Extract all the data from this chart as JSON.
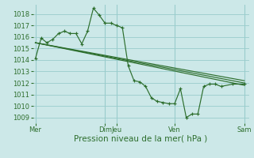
{
  "bg_color": "#cce8e8",
  "grid_color": "#99cccc",
  "line_color": "#2d6e2d",
  "xlabel": "Pression niveau de la mer( hPa )",
  "xlabel_fontsize": 7.5,
  "ylim": [
    1008.5,
    1018.8
  ],
  "yticks": [
    1009,
    1010,
    1011,
    1012,
    1013,
    1014,
    1015,
    1016,
    1017,
    1018
  ],
  "xtick_labels": [
    "Mer",
    "Dim",
    "Jeu",
    "Ven",
    "Sam"
  ],
  "xtick_positions": [
    0,
    6,
    7,
    12,
    18
  ],
  "vlines": [
    0,
    6,
    7,
    12,
    18
  ],
  "s1x": [
    0,
    0.5,
    1.0,
    1.5,
    2.0,
    2.5,
    3.0,
    3.5,
    4.0,
    4.5,
    5.0,
    5.5,
    6.0,
    6.5,
    7.0,
    7.5,
    8.0,
    8.5,
    9.0,
    9.5,
    10.0,
    10.5,
    11.0,
    11.5,
    12.0,
    12.5,
    13.0,
    13.5,
    14.0,
    14.5,
    15.0,
    15.5,
    16.0,
    17.0,
    18.0
  ],
  "s1y": [
    1014.1,
    1015.9,
    1015.5,
    1015.8,
    1016.3,
    1016.5,
    1016.3,
    1016.3,
    1015.4,
    1016.5,
    1018.5,
    1017.9,
    1017.2,
    1017.2,
    1017.0,
    1016.8,
    1013.5,
    1012.2,
    1012.1,
    1011.7,
    1010.7,
    1010.4,
    1010.3,
    1010.2,
    1010.2,
    1011.5,
    1009.0,
    1009.3,
    1009.3,
    1011.7,
    1011.9,
    1011.9,
    1011.7,
    1011.9,
    1011.9
  ],
  "line2_x": [
    0,
    18
  ],
  "line2_y": [
    1015.5,
    1012.2
  ],
  "line3_x": [
    0,
    18
  ],
  "line3_y": [
    1015.5,
    1012.0
  ],
  "line4_x": [
    0,
    18
  ],
  "line4_y": [
    1015.5,
    1011.8
  ]
}
